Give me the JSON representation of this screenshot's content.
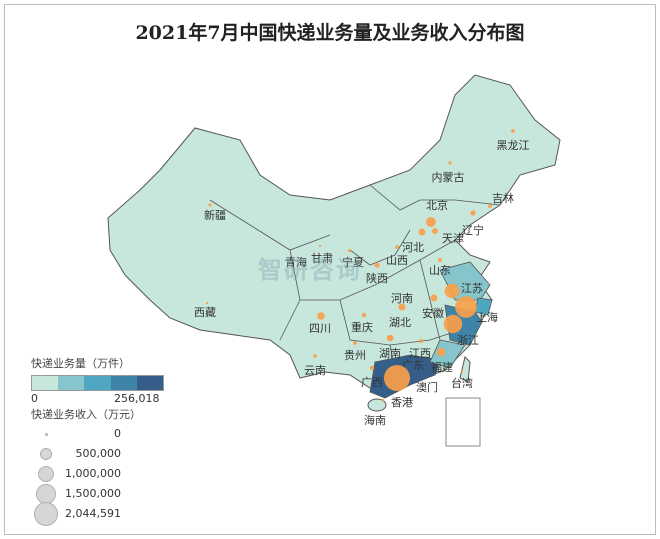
{
  "title": "2021年7月中国快递业务量及业务收入分布图",
  "watermark": "智研咨询",
  "colors": {
    "tiers": [
      "#c7e6dc",
      "#86c5cb",
      "#4fa6c0",
      "#3e84a8",
      "#355f8a"
    ],
    "bubble": "#f8a04a",
    "border": "#555555"
  },
  "legend": {
    "volume_title": "快递业务量（万件）",
    "volume_min": "0",
    "volume_max": "256,018",
    "revenue_title": "快递业务收入（万元）",
    "revenue_items": [
      {
        "label": "0",
        "value": 0
      },
      {
        "label": "500,000",
        "value": 500000
      },
      {
        "label": "1,000,000",
        "value": 1000000
      },
      {
        "label": "1,500,000",
        "value": 1500000
      },
      {
        "label": "2,044,591",
        "value": 2044591
      }
    ]
  },
  "provinces": [
    {
      "name": "黑龙江",
      "tier": 1,
      "revenue": 45000
    },
    {
      "name": "内蒙古",
      "tier": 1,
      "revenue": 30000
    },
    {
      "name": "吉林",
      "tier": 1,
      "revenue": 45000
    },
    {
      "name": "新疆",
      "tier": 1,
      "revenue": 30000
    },
    {
      "name": "北京",
      "tier": 1,
      "revenue": 290000
    },
    {
      "name": "辽宁",
      "tier": 1,
      "revenue": 80000
    },
    {
      "name": "天津",
      "tier": 1,
      "revenue": 110000
    },
    {
      "name": "河北",
      "tier": 1,
      "revenue": 140000
    },
    {
      "name": "甘肃",
      "tier": 1,
      "revenue": 12000
    },
    {
      "name": "宁夏",
      "tier": 1,
      "revenue": 8000
    },
    {
      "name": "山西",
      "tier": 1,
      "revenue": 40000
    },
    {
      "name": "陕西",
      "tier": 1,
      "revenue": 80000
    },
    {
      "name": "青海",
      "tier": 1,
      "revenue": 5000
    },
    {
      "name": "山东",
      "tier": 2,
      "revenue": 50000
    },
    {
      "name": "江苏",
      "tier": 2,
      "revenue": 650000
    },
    {
      "name": "河南",
      "tier": 1,
      "revenue": 150000
    },
    {
      "name": "安徽",
      "tier": 1,
      "revenue": 150000
    },
    {
      "name": "上海",
      "tier": 3,
      "revenue": 1420000
    },
    {
      "name": "湖北",
      "tier": 1,
      "revenue": 120000
    },
    {
      "name": "四川",
      "tier": 1,
      "revenue": 170000
    },
    {
      "name": "重庆",
      "tier": 1,
      "revenue": 60000
    },
    {
      "name": "西藏",
      "tier": 1,
      "revenue": 3000
    },
    {
      "name": "浙江",
      "tier": 4,
      "revenue": 1030000
    },
    {
      "name": "贵州",
      "tier": 1,
      "revenue": 45000
    },
    {
      "name": "湖南",
      "tier": 1,
      "revenue": 80000
    },
    {
      "name": "江西",
      "tier": 1,
      "revenue": 50000
    },
    {
      "name": "广东",
      "tier": 5,
      "revenue": 2044591
    },
    {
      "name": "福建",
      "tier": 2,
      "revenue": 220000
    },
    {
      "name": "云南",
      "tier": 1,
      "revenue": 40000
    },
    {
      "name": "广西",
      "tier": 1,
      "revenue": 60000
    },
    {
      "name": "台湾",
      "tier": 1,
      "revenue": 5000
    },
    {
      "name": "澳门",
      "tier": 1,
      "revenue": 0
    },
    {
      "name": "香港",
      "tier": 1,
      "revenue": 0
    },
    {
      "name": "海南",
      "tier": 1,
      "revenue": 12000
    }
  ]
}
